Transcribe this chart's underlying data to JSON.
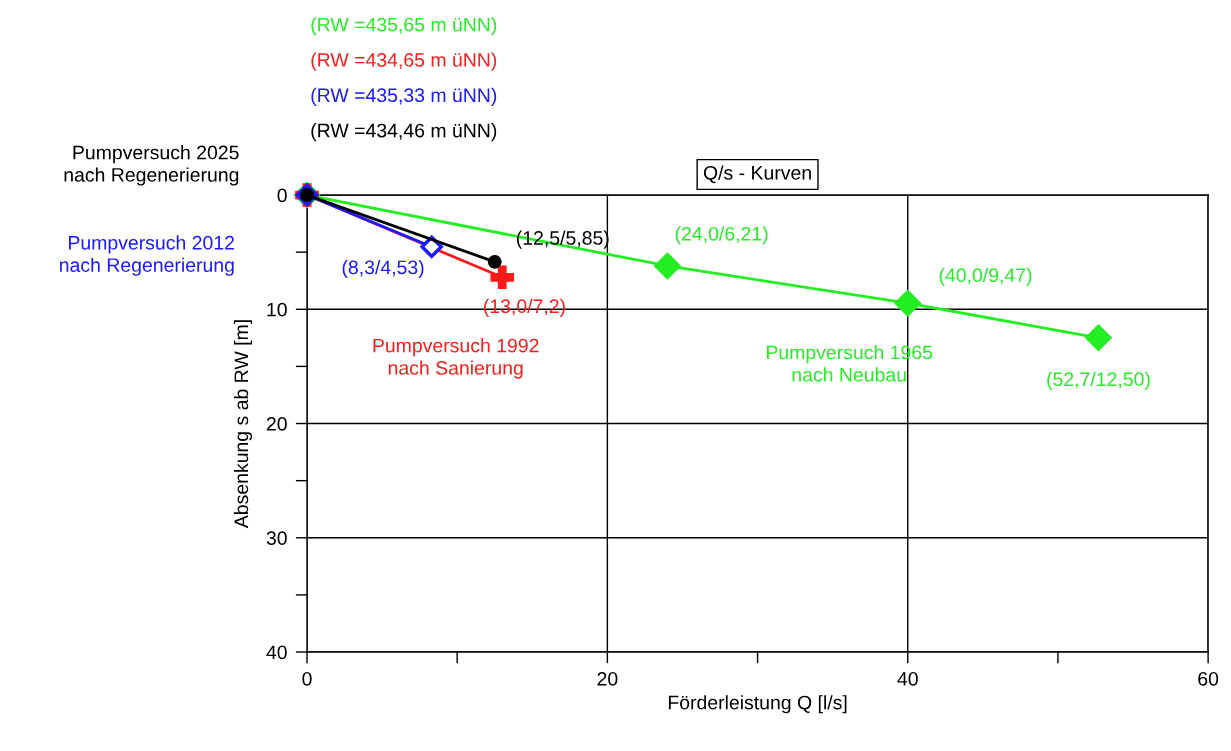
{
  "chart_data": {
    "type": "line",
    "title": "Q/s - Kurven",
    "xlabel": "Förderleistung Q [l/s]",
    "ylabel": "Absenkung s ab RW [m]",
    "series": [
      {
        "name": "Pumpversuch 1965\nnach Neubau",
        "color": "#22ee22",
        "marker": "diamond",
        "x": [
          0,
          24.0,
          40.0,
          52.7
        ],
        "values": [
          0,
          6.21,
          9.47,
          12.5
        ],
        "value_labels": [
          null,
          "(24,0/6,21)",
          "(40,0/9,47)",
          "(52,7/12,50)"
        ]
      },
      {
        "name": "Pumpversuch 1992\nnach Sanierung",
        "color": "#ff1a1a",
        "marker": "cross",
        "x": [
          0,
          13.0
        ],
        "values": [
          0,
          7.2
        ],
        "value_labels": [
          null,
          "(13,0/7,2)"
        ]
      },
      {
        "name": "Pumpversuch 2012\nnach Regenerierung",
        "color": "#1a1aff",
        "marker": "diamond",
        "x": [
          0,
          8.3
        ],
        "values": [
          0,
          4.53
        ],
        "value_labels": [
          null,
          "(8,3/4,53)"
        ]
      },
      {
        "name": "Pumpversuch 2025\nnach Regenerierung",
        "color": "#000000",
        "marker": "circle",
        "x": [
          0,
          12.5
        ],
        "values": [
          0,
          5.85
        ],
        "value_labels": [
          null,
          "(12,5/5,85)"
        ]
      }
    ],
    "annotations": [
      "(RW =435,65 m üNN)",
      "(RW =434,65 m üNN)",
      "(RW =435,33 m üNN)",
      "(RW =434,46 m üNN)"
    ],
    "xlim": [
      0,
      60
    ],
    "ylim": [
      40,
      0
    ],
    "xticks": [
      0,
      {
        "value": 10,
        "label": null
      },
      20,
      {
        "value": 30,
        "label": null
      },
      40,
      {
        "value": 50,
        "label": null
      },
      60
    ],
    "yticks": [
      0,
      {
        "value": 5,
        "label": null
      },
      10,
      {
        "value": 15,
        "label": null
      },
      20,
      {
        "value": 25,
        "label": null
      },
      30,
      {
        "value": 35,
        "label": null
      },
      40
    ],
    "grid": true,
    "legend": false
  }
}
